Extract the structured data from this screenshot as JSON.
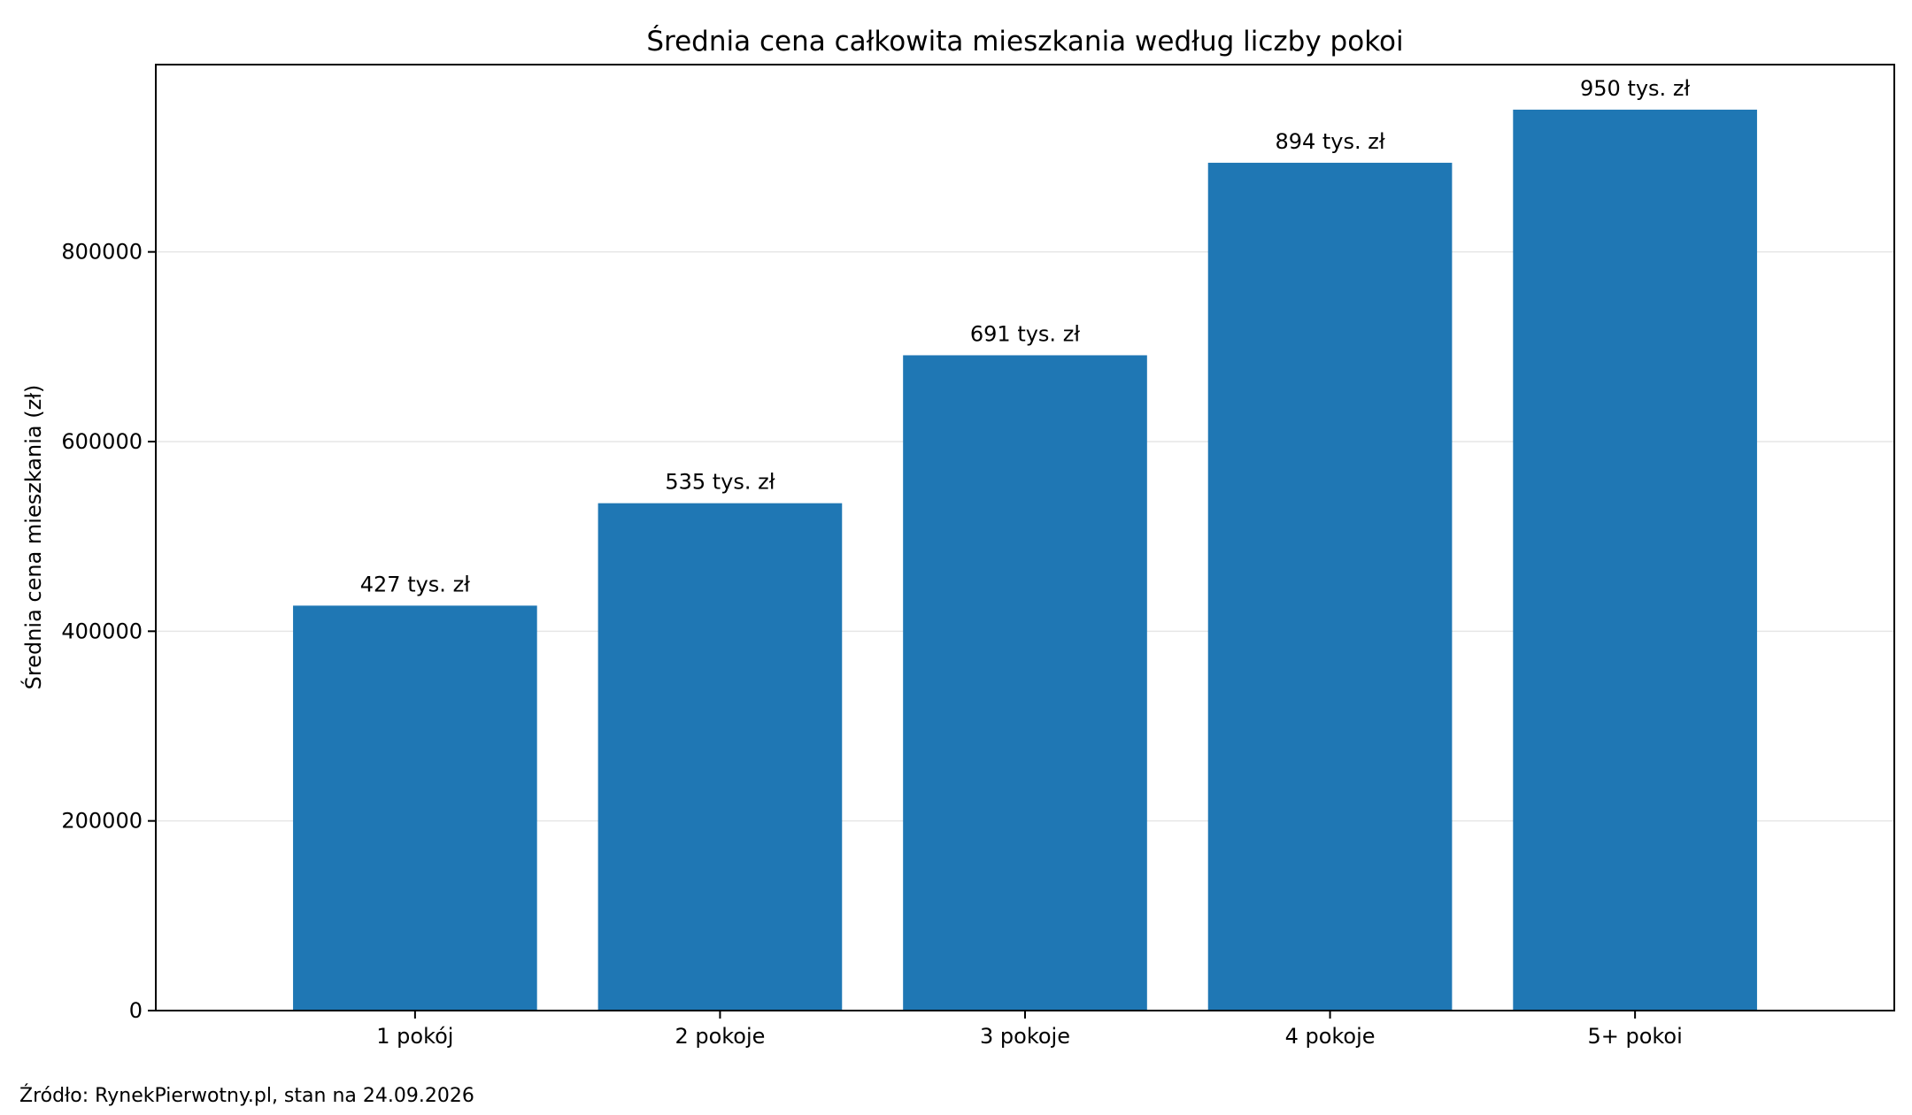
{
  "chart_data": {
    "type": "bar",
    "title": "Średnia cena całkowita mieszkania według liczby pokoi",
    "xlabel": "",
    "ylabel": "Średnia cena mieszkania (zł)",
    "categories": [
      "1 pokój",
      "2 pokoje",
      "3 pokoje",
      "4 pokoje",
      "5+ pokoi"
    ],
    "values": [
      427000,
      535000,
      691000,
      894000,
      950000
    ],
    "data_labels": [
      "427 tys. zł",
      "535 tys. zł",
      "691 tys. zł",
      "894 tys. zł",
      "950 tys. zł"
    ],
    "ylim": [
      0,
      997500
    ],
    "yticks": [
      0,
      200000,
      400000,
      600000,
      800000
    ],
    "ytick_labels": [
      "0",
      "200000",
      "400000",
      "600000",
      "800000"
    ],
    "grid": "horizontal",
    "legend": "none",
    "bar_color": "#1f77b4",
    "grid_color": "#e6e6e6"
  },
  "source_note": "Źródło: RynekPierwotny.pl, stan na 24.09.2026"
}
